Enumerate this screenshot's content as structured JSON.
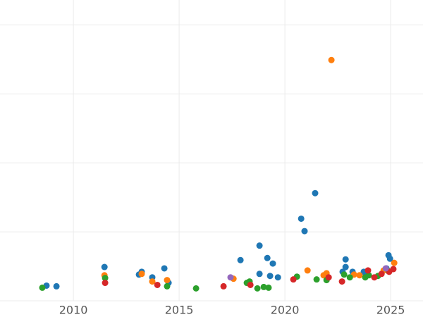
{
  "chart_data": {
    "type": "scatter",
    "xlim": [
      2006.53,
      2026.53
    ],
    "xticks": [
      2010,
      2015,
      2020,
      2025
    ],
    "ylim": [
      0,
      4.36
    ],
    "yticks": [
      0,
      1,
      2,
      3,
      4
    ],
    "grid": true,
    "series": [
      {
        "color": "#1f77b4",
        "x": [
          2008.73,
          2009.2,
          2011.47,
          2013.1,
          2013.23,
          2013.73,
          2014.3,
          2014.5,
          2017.9,
          2018.8,
          2018.8,
          2019.17,
          2019.3,
          2019.43,
          2019.67,
          2020.77,
          2020.93,
          2021.43,
          2022.87,
          2022.87,
          2022.73,
          2023.2,
          2023.73,
          2024.9,
          2024.97,
          2024.8,
          2023.83
        ],
        "values": [
          0.22,
          0.21,
          0.49,
          0.38,
          0.42,
          0.34,
          0.47,
          0.26,
          0.59,
          0.8,
          0.39,
          0.62,
          0.36,
          0.54,
          0.34,
          1.19,
          1.01,
          1.56,
          0.6,
          0.49,
          0.42,
          0.42,
          0.42,
          0.66,
          0.61,
          0.47,
          0.36
        ]
      },
      {
        "color": "#ff7f0e",
        "x": [
          2022.2,
          2011.47,
          2013.23,
          2013.73,
          2014.43,
          2017.57,
          2021.07,
          2021.83,
          2021.97,
          2023.27,
          2023.53,
          2025.17,
          2024.67
        ],
        "values": [
          3.49,
          0.37,
          0.39,
          0.28,
          0.3,
          0.32,
          0.44,
          0.37,
          0.4,
          0.38,
          0.37,
          0.55,
          0.44
        ]
      },
      {
        "color": "#2ca02c",
        "x": [
          2008.53,
          2011.5,
          2014.43,
          2015.8,
          2018.2,
          2018.33,
          2018.7,
          2019.0,
          2019.23,
          2020.57,
          2021.5,
          2021.97,
          2022.8,
          2023.07,
          2023.8,
          2023.97,
          2024.4,
          2024.9
        ],
        "values": [
          0.19,
          0.33,
          0.21,
          0.18,
          0.26,
          0.28,
          0.18,
          0.2,
          0.19,
          0.35,
          0.31,
          0.3,
          0.38,
          0.34,
          0.34,
          0.37,
          0.36,
          0.43
        ]
      },
      {
        "color": "#d62728",
        "x": [
          2011.5,
          2013.97,
          2017.1,
          2018.37,
          2020.4,
          2022.07,
          2022.7,
          2023.93,
          2024.23,
          2024.57,
          2024.93,
          2025.13
        ],
        "values": [
          0.26,
          0.23,
          0.21,
          0.23,
          0.31,
          0.34,
          0.28,
          0.44,
          0.34,
          0.39,
          0.42,
          0.46
        ]
      },
      {
        "color": "#9467bd",
        "x": [
          2017.43,
          2024.77
        ],
        "values": [
          0.34,
          0.47
        ]
      }
    ]
  }
}
